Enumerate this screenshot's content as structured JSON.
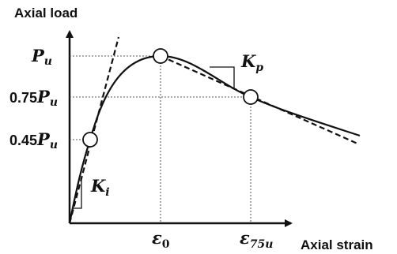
{
  "labels": {
    "y_axis_title": "Axial load",
    "x_axis_title": "Axial strain",
    "pu_symbol": "P",
    "pu_sub": "u",
    "p75_coef": "0.75",
    "p75_symbol": "P",
    "p75_sub": "u",
    "p45_coef": "0.45",
    "p45_symbol": "P",
    "p45_sub": "u",
    "eps0_symbol": "ε",
    "eps0_sub": "0",
    "eps75_symbol": "ε",
    "eps75_sub": "75u",
    "ki_symbol": "K",
    "ki_sub": "i",
    "kp_symbol": "K",
    "kp_sub": "p"
  },
  "colors": {
    "ink": "#111111",
    "guide": "#555555"
  }
}
